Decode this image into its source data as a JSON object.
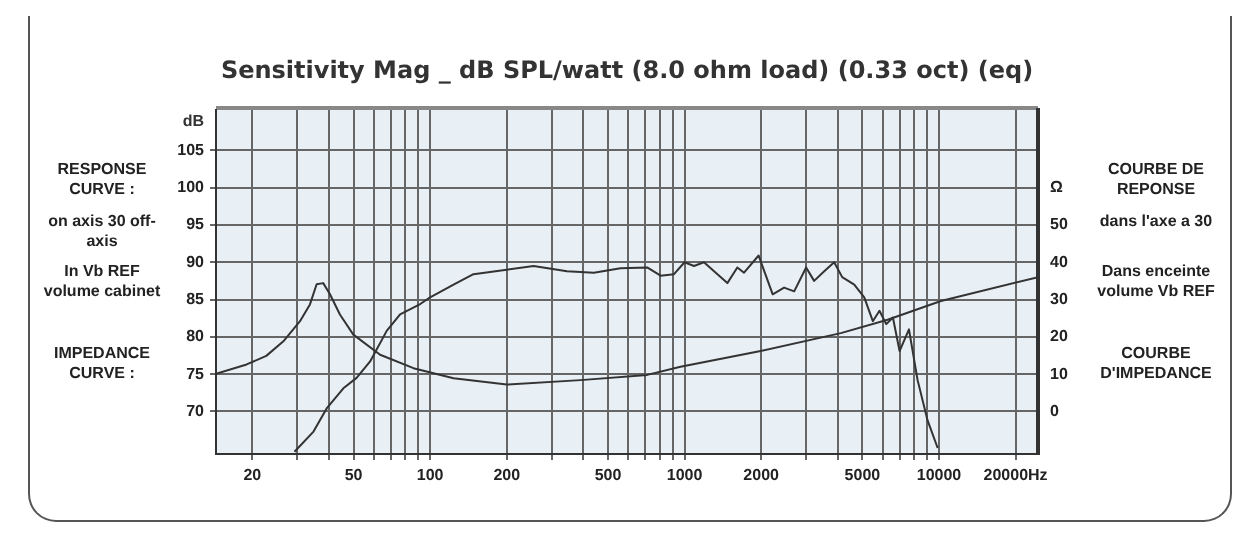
{
  "chart_data": {
    "type": "line",
    "title": "Sensitivity Mag _ dB SPL/watt (8.0 ohm load) (0.33 oct) (eq)",
    "ylabel": "dB",
    "annotations": [
      "RESPONSE CURVE :",
      "on axis 30 off-axis",
      "In Vb REF volume cabinet",
      "IMPEDANCE CURVE :",
      "COURBE DE REPONSE",
      "dans l'axe a 30",
      "Dans enceinte volume Vb REF",
      "COURBE D'IMPEDANCE"
    ],
    "log": "x",
    "grid": true,
    "legend": false,
    "marker": "none",
    "line_style": "solid",
    "xlim": [
      14.4,
      24500
    ],
    "xticks": [
      20,
      {
        "value": 30,
        "label": null
      },
      {
        "value": 40,
        "label": null
      },
      50,
      {
        "value": 60,
        "label": null
      },
      {
        "value": 70,
        "label": null
      },
      {
        "value": 80,
        "label": null
      },
      {
        "value": 90,
        "label": null
      },
      100,
      200,
      {
        "value": 300,
        "label": null
      },
      {
        "value": 400,
        "label": null
      },
      500,
      {
        "value": 600,
        "label": null
      },
      {
        "value": 700,
        "label": null
      },
      {
        "value": 800,
        "label": null
      },
      {
        "value": 900,
        "label": null
      },
      1000,
      2000,
      {
        "value": 3000,
        "label": null
      },
      {
        "value": 4000,
        "label": null
      },
      5000,
      {
        "value": 6000,
        "label": null
      },
      {
        "value": 7000,
        "label": null
      },
      {
        "value": 8000,
        "label": null
      },
      {
        "value": 9000,
        "label": null
      },
      10000,
      {
        "value": 20000,
        "label": "20000Hz"
      }
    ],
    "ylim": [
      64.3,
      110.4
    ],
    "yticks": [
      70,
      75,
      80,
      85,
      90,
      95,
      100,
      105
    ],
    "y2lim": [
      -11.4,
      80.8
    ],
    "y2ticks": [
      0,
      10,
      20,
      30,
      40,
      50,
      {
        "value": 60,
        "label": "Ω"
      }
    ],
    "series": [
      {
        "color": "#333333",
        "x": [
          29.3,
          34.8,
          39.2,
          45.6,
          51.4,
          58.1,
          67.5,
          76.2,
          91.4,
          100,
          123.6,
          148,
          200,
          255,
          345,
          440,
          560,
          713,
          805,
          909,
          1000,
          1089,
          1192,
          1306,
          1473,
          1612,
          1713,
          1955,
          2057,
          2220,
          2462,
          2697,
          3005,
          3230,
          3540,
          3873,
          4165,
          4645,
          5085,
          5495,
          5835,
          6205,
          6590,
          7000,
          7620,
          8240,
          9020,
          9880
        ],
        "values": [
          64.6,
          67.3,
          70.4,
          73.1,
          74.5,
          76.7,
          80.8,
          83.0,
          84.4,
          85.3,
          87.0,
          88.4,
          89.0,
          89.5,
          88.8,
          88.6,
          89.2,
          89.3,
          88.2,
          88.4,
          90.0,
          89.5,
          90.0,
          88.8,
          87.2,
          89.3,
          88.6,
          90.9,
          88.8,
          85.7,
          86.6,
          86.1,
          89.3,
          87.5,
          88.8,
          90.0,
          88.0,
          87.0,
          85.3,
          82.1,
          83.5,
          81.7,
          82.6,
          78.1,
          81.0,
          74.2,
          68.8,
          65.1
        ]
      },
      {
        "color": "#333333",
        "axis": "y2",
        "x": [
          14.4,
          19.0,
          22.7,
          26.5,
          30.8,
          33.7,
          35.8,
          38.0,
          40.4,
          44.2,
          49.9,
          63.6,
          86.0,
          123.6,
          200,
          390,
          713,
          964,
          1991,
          4113,
          6280,
          10180,
          24500
        ],
        "values": [
          10.1,
          12.6,
          14.9,
          18.8,
          24.2,
          28.7,
          34.1,
          34.4,
          31.4,
          26.0,
          20.6,
          15.2,
          11.6,
          8.9,
          7.2,
          8.4,
          9.8,
          12.0,
          16.2,
          21.0,
          24.6,
          29.6,
          36.0
        ]
      }
    ]
  }
}
